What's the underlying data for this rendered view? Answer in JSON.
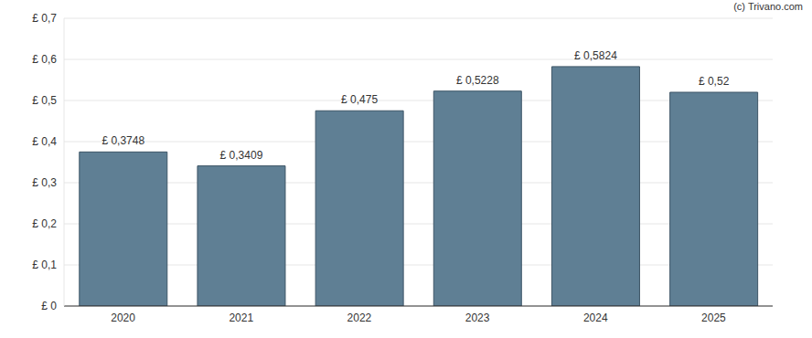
{
  "chart_data": {
    "type": "bar",
    "annotations": [
      "(c) Trivano.com"
    ],
    "categories": [
      "2020",
      "2021",
      "2022",
      "2023",
      "2024",
      "2025"
    ],
    "values": [
      0.3748,
      0.3409,
      0.475,
      0.5228,
      0.5824,
      0.52
    ],
    "value_labels": [
      "£ 0,3748",
      "£ 0,3409",
      "£ 0,475",
      "£ 0,5228",
      "£ 0,5824",
      "£ 0,52"
    ],
    "color": "#5f7f94",
    "ylim": [
      0,
      0.7
    ],
    "yticks": [
      {
        "value": 0,
        "label": "£ 0"
      },
      {
        "value": 0.1,
        "label": "£ 0,1"
      },
      {
        "value": 0.2,
        "label": "£ 0,2"
      },
      {
        "value": 0.3,
        "label": "£ 0,3"
      },
      {
        "value": 0.4,
        "label": "£ 0,4"
      },
      {
        "value": 0.5,
        "label": "£ 0,5"
      },
      {
        "value": 0.6,
        "label": "£ 0,6"
      },
      {
        "value": 0.7,
        "label": "£ 0,7"
      }
    ],
    "grid": true,
    "data_labels": true
  }
}
